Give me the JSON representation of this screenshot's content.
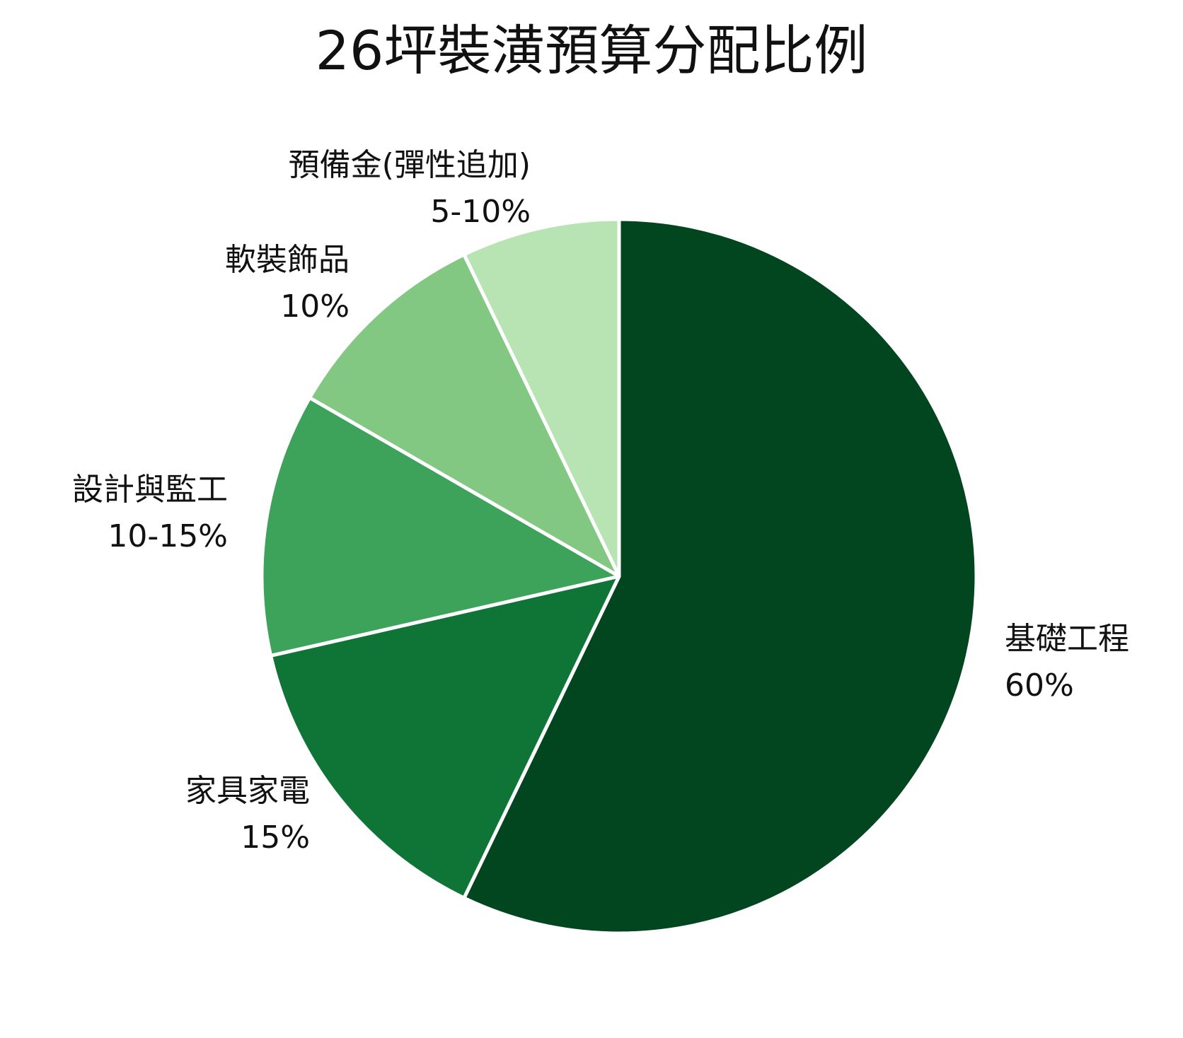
{
  "chart_data": {
    "type": "pie",
    "title": "26坪裝潢預算分配比例",
    "start_angle_deg": 0,
    "direction": "clockwise",
    "slices": [
      {
        "label": "基礎工程",
        "value_text": "60%",
        "value": 60,
        "color": "#02461f"
      },
      {
        "label": "家具家電",
        "value_text": "15%",
        "value": 15,
        "color": "#0f7537"
      },
      {
        "label": "設計與監工",
        "value_text": "10-15%",
        "value": 12.5,
        "color": "#3ea35a"
      },
      {
        "label": "軟裝飾品",
        "value_text": "10%",
        "value": 10,
        "color": "#82c782"
      },
      {
        "label": "預備金(彈性追加)",
        "value_text": "5-10%",
        "value": 7.5,
        "color": "#b8e3b3"
      }
    ],
    "separator_color": "#ffffff"
  }
}
